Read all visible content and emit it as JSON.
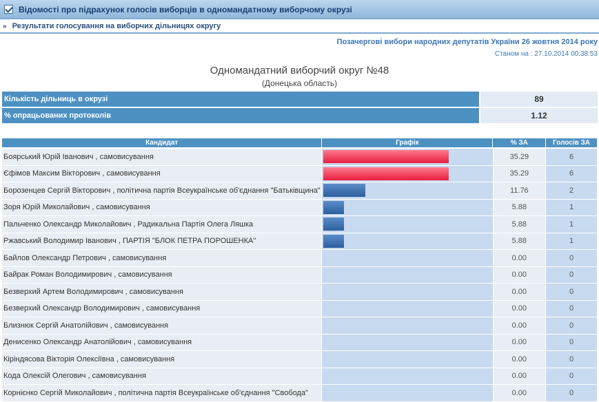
{
  "header": {
    "title": "Відомості про підрахунок голосів виборців в одномандатному виборчому окрузі",
    "subnav": "Результати голосування на виборчих дільницях округу"
  },
  "election": {
    "name": "Позачергові вибори народних депутатів України 26 жовтня 2014 року",
    "as_of": "Станом на : 27.10.2014 00:38:53",
    "district": "Одномандатний виборчий округ №48",
    "region": "(Донецька область)"
  },
  "stats": {
    "stations_label": "Кількість дільниць в окрузі",
    "stations_value": "89",
    "processed_label": "% опрацьованих протоколів",
    "processed_value": "1.12"
  },
  "columns": {
    "candidate": "Кандидат",
    "chart": "Графік",
    "pct": "% ЗА",
    "votes": "Голосів ЗА"
  },
  "colors": {
    "top_bar": "#e81f3f",
    "other_bar": "#2d5f9e",
    "header_bg": "#4d91c2"
  },
  "candidates": [
    {
      "name": "Боярський Юрій Іванович , самовисування",
      "pct": "35.29",
      "votes": "6",
      "share": 35.29
    },
    {
      "name": "Єфімов Максим Вікторович , самовисування",
      "pct": "35.29",
      "votes": "6",
      "share": 35.29
    },
    {
      "name": "Борозенцев Сергій Вікторович , політична партія Всеукраїнське об'єднання \"Батьківщина\"",
      "pct": "11.76",
      "votes": "2",
      "share": 11.76
    },
    {
      "name": "Зоря Юрій Миколайович , самовисування",
      "pct": "5.88",
      "votes": "1",
      "share": 5.88
    },
    {
      "name": "Пальченко Олександр Миколайович , Радикальна Партія Олега Ляшка",
      "pct": "5.88",
      "votes": "1",
      "share": 5.88
    },
    {
      "name": "Ржавський Володимир Іванович , ПАРТІЯ \"БЛОК ПЕТРА ПОРОШЕНКА\"",
      "pct": "5.88",
      "votes": "1",
      "share": 5.88
    },
    {
      "name": "Байлов Олександр Петрович , самовисування",
      "pct": "0.00",
      "votes": "0",
      "share": 0
    },
    {
      "name": "Байрак Роман Володимирович , самовисування",
      "pct": "0.00",
      "votes": "0",
      "share": 0
    },
    {
      "name": "Безверхий Артем Володимирович , самовисування",
      "pct": "0.00",
      "votes": "0",
      "share": 0
    },
    {
      "name": "Безверхий Олександр Володимирович , самовисування",
      "pct": "0.00",
      "votes": "0",
      "share": 0
    },
    {
      "name": "Близнюк Сергій Анатолійович , самовисування",
      "pct": "0.00",
      "votes": "0",
      "share": 0
    },
    {
      "name": "Денисенко Олександр Анатолійович , самовисування",
      "pct": "0.00",
      "votes": "0",
      "share": 0
    },
    {
      "name": "Кіріндясова Вікторія Олексіївна , самовисування",
      "pct": "0.00",
      "votes": "0",
      "share": 0
    },
    {
      "name": "Кода Олексій Олегович , самовисування",
      "pct": "0.00",
      "votes": "0",
      "share": 0
    },
    {
      "name": "Корнієнко Сергій Миколайович , політична партія Всеукраїнське об'єднання \"Свобода\"",
      "pct": "0.00",
      "votes": "0",
      "share": 0
    }
  ]
}
